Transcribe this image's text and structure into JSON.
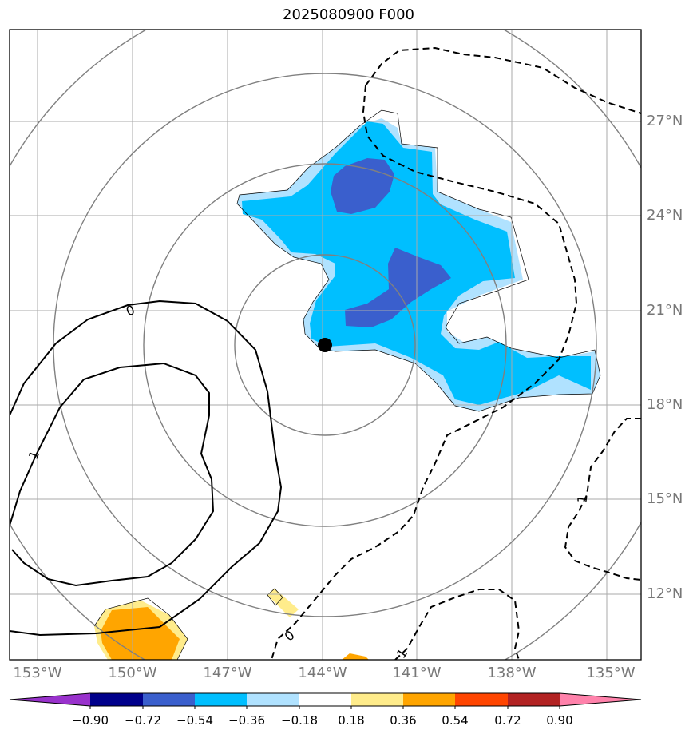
{
  "title": "2025080900 F000",
  "lon_labels": [
    "153°W",
    "150°W",
    "147°W",
    "144°W",
    "141°W",
    "138°W",
    "135°W"
  ],
  "lat_labels": [
    "27°N",
    "24°N",
    "21°N",
    "18°N",
    "15°N",
    "12°N"
  ],
  "contour_labels": [
    "0",
    "1",
    "0",
    "1",
    "1"
  ],
  "colorbar": {
    "ticks": [
      "−0.90",
      "−0.72",
      "−0.54",
      "−0.36",
      "−0.18",
      "0.18",
      "0.36",
      "0.54",
      "0.72",
      "0.90"
    ],
    "colors": [
      "#9932cc",
      "#00008b",
      "#3a5fcd",
      "#00bfff",
      "#b0e2ff",
      "#ffffff",
      "#ffec8b",
      "#ffa500",
      "#ff4500",
      "#b22222",
      "#ff82ab"
    ]
  },
  "marker_label": "storm-center"
}
